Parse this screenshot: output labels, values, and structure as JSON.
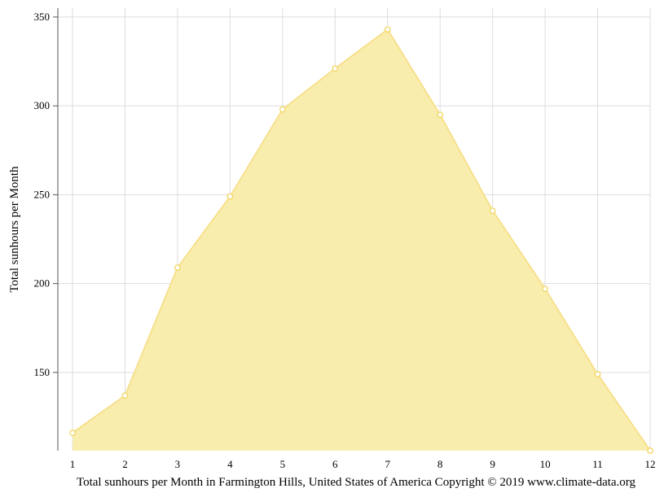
{
  "chart_data": {
    "type": "area",
    "x": [
      1,
      2,
      3,
      4,
      5,
      6,
      7,
      8,
      9,
      10,
      11,
      12
    ],
    "values": [
      116,
      137,
      209,
      249,
      298,
      321,
      343,
      295,
      241,
      197,
      149,
      106
    ],
    "ylabel": "Total sunhours per Month",
    "xlabel": "Total sunhours per Month in Farmington Hills, United States of America Copyright © 2019 www.climate-data.org",
    "xticks": [
      "1",
      "2",
      "3",
      "4",
      "5",
      "6",
      "7",
      "8",
      "9",
      "10",
      "11",
      "12"
    ],
    "yticks": [
      150,
      200,
      250,
      300,
      350
    ],
    "ylim": [
      106,
      355
    ],
    "xlim": [
      1,
      12
    ],
    "grid": true,
    "fill_color": "#f9ecaa",
    "line_color": "#f7e08c",
    "marker_color": "#f2d55e"
  }
}
